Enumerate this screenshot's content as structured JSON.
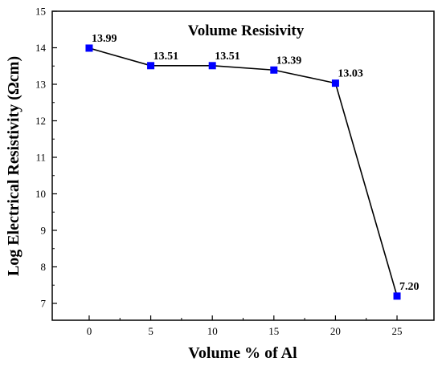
{
  "chart_data": {
    "type": "line",
    "title": "Volume Resisivity",
    "xlabel": "Volume % of Al",
    "ylabel": "Log Electrical Resistivity (Ωcm)",
    "x": [
      0,
      5,
      10,
      15,
      20,
      25
    ],
    "series": [
      {
        "values": [
          13.99,
          13.51,
          13.51,
          13.39,
          13.03,
          7.2
        ],
        "labels": [
          "13.99",
          "13.51",
          "13.51",
          "13.39",
          "13.03",
          "7.20"
        ],
        "line_color": "#000000",
        "marker_color": "#0000ff",
        "marker": "square"
      }
    ],
    "xlim": [
      -3,
      28
    ],
    "ylim": [
      6.7,
      15
    ],
    "xticks": [
      0,
      5,
      10,
      15,
      20,
      25
    ],
    "yticks": [
      7,
      8,
      9,
      10,
      11,
      12,
      13,
      14,
      15
    ],
    "grid": false,
    "legend": "none"
  }
}
